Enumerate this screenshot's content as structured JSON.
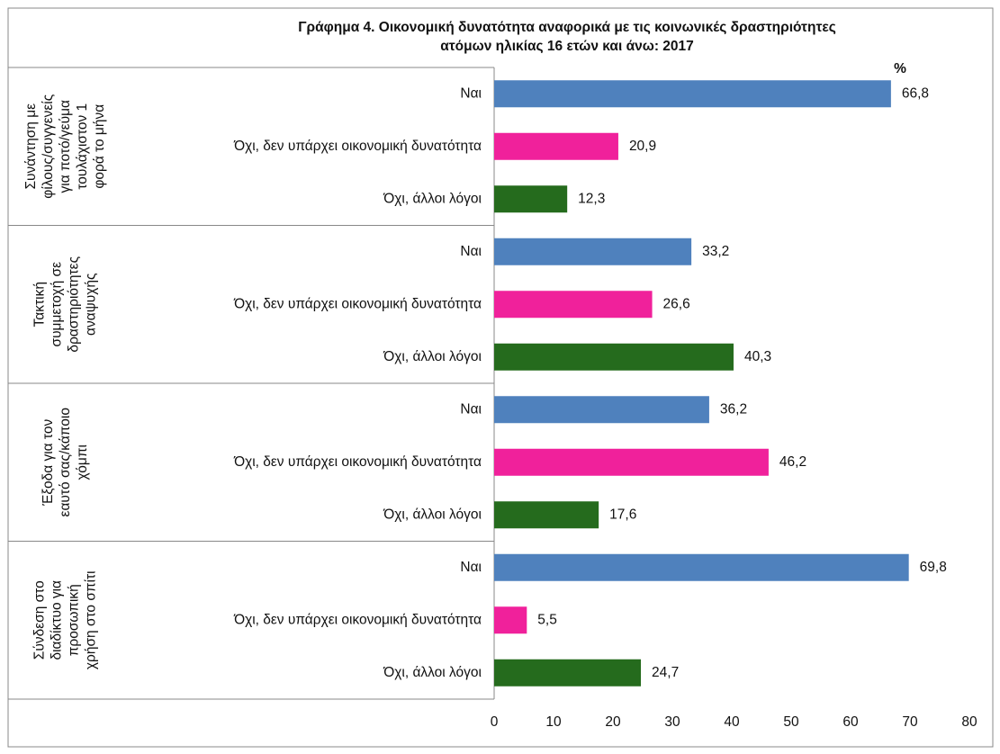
{
  "chart_data": {
    "type": "bar",
    "orientation": "horizontal",
    "title": [
      "Γράφημα 4. Οικονομική δυνατότητα αναφορικά με τις κοινωνικές δραστηριότητες",
      "ατόμων ηλικίας 16 ετών και άνω: 2017"
    ],
    "unit": "%",
    "categories": [
      [
        "Συνάντηση με",
        "φίλους/συγγενείς",
        "για ποτό/γεύμα",
        "τουλάχιστον 1",
        "φορά το μήνα"
      ],
      [
        "Τακτική",
        "συμμετοχή σε",
        "δραστηριότητες",
        "αναψυχής"
      ],
      [
        "Έξοδα για τον",
        "εαυτό σας/κάποιο",
        "χόμπι"
      ],
      [
        "Σύνδεση στο",
        "διαδίκτυο για",
        "προσωπική",
        "χρήση στο σπίτι"
      ]
    ],
    "series": [
      {
        "name": "Ναι",
        "color": "#4f81bd",
        "values": [
          66.8,
          33.2,
          36.2,
          69.8
        ],
        "value_labels": [
          "66,8",
          "33,2",
          "36,2",
          "69,8"
        ]
      },
      {
        "name": "Όχι, δεν υπάρχει οικονομική δυνατότητα",
        "color": "#f0219b",
        "values": [
          20.9,
          26.6,
          46.2,
          5.5
        ],
        "value_labels": [
          "20,9",
          "26,6",
          "46,2",
          "5,5"
        ]
      },
      {
        "name": "Όχι, άλλοι λόγοι",
        "color": "#256b1d",
        "values": [
          12.3,
          40.3,
          17.6,
          24.7
        ],
        "value_labels": [
          "12,3",
          "40,3",
          "17,6",
          "24,7"
        ]
      }
    ],
    "xlim": [
      0,
      80
    ],
    "xticks": [
      0,
      10,
      20,
      30,
      40,
      50,
      60,
      70,
      80
    ]
  }
}
